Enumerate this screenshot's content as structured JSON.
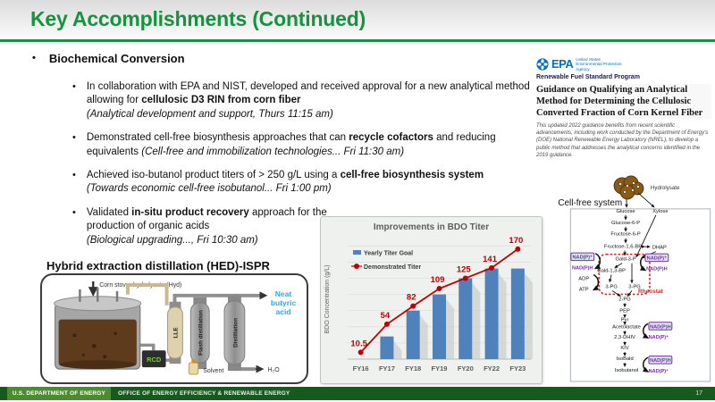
{
  "slide": {
    "title": "Key Accomplishments (Continued)",
    "page_number": "17"
  },
  "footer": {
    "doe": "U.S. DEPARTMENT OF ENERGY",
    "office": "OFFICE OF ENERGY EFFICIENCY & RENEWABLE ENERGY"
  },
  "colors": {
    "title_green": "#17923e",
    "footer_dark_green": "#175a1e",
    "footer_mid_green": "#4a8c2e",
    "bar_blue": "#4f81bd",
    "line_red": "#c00000",
    "epa_blue": "#0071bc",
    "product_blue": "#29abe2",
    "cofactor_purple": "#7030a0"
  },
  "bullets": {
    "section": "Biochemical Conversion",
    "items": [
      {
        "segments": [
          {
            "text": "In collaboration with EPA and NIST, developed and received approval for a new analytical method allowing for "
          },
          {
            "text": "cellulosic D3 RIN from corn fiber",
            "bold": true
          },
          {
            "text": "(Analytical development and support, Thurs 11:15 am)",
            "italic": true,
            "block": true
          }
        ]
      },
      {
        "segments": [
          {
            "text": "Demonstrated cell-free biosynthesis approaches that can "
          },
          {
            "text": "recycle cofactors",
            "bold": true
          },
          {
            "text": " and reducing equivalents "
          },
          {
            "text": "(Cell-free and immobilization technologies... Fri 11:30 am)",
            "italic": true
          }
        ]
      },
      {
        "segments": [
          {
            "text": "Achieved iso-butanol product titers of > 250 g/L using a "
          },
          {
            "text": "cell-free biosynthesis system",
            "bold": true
          },
          {
            "text": "(Towards economic cell-free isobutanol... Fri 1:00 pm)",
            "italic": true,
            "block": true
          }
        ]
      },
      {
        "segments": [
          {
            "text": "Validated "
          },
          {
            "text": "in-situ product recovery",
            "bold": true
          },
          {
            "text": " approach for the production of organic acids",
            "bold": false
          },
          {
            "text": "(Biological upgrading..., Fri 10:30 am)",
            "italic": true,
            "block": true
          }
        ]
      }
    ]
  },
  "hed": {
    "title": "Hybrid extraction distillation (HED)-ISPR",
    "feed": "Corn stover hydrolysate (Hyd)",
    "rcd": "RCD",
    "lle": "LLE",
    "flash": "Flash distillation",
    "distillation": "Distillation",
    "product": "Neat butyric acid",
    "water": "H₂O",
    "solvent": "Solvent"
  },
  "chart_data": {
    "type": "bar",
    "title": "Improvements in BDO Titer",
    "categories": [
      "FY16",
      "FY17",
      "FY18",
      "FY19",
      "FY20",
      "FY22",
      "FY23"
    ],
    "series": [
      {
        "name": "Yearly Titer Goal",
        "type": "bar",
        "color": "#4f81bd",
        "values": [
          null,
          35,
          75,
          100,
          125,
          140,
          140
        ]
      },
      {
        "name": "Demonstrated Titer",
        "type": "line",
        "color": "#c00000",
        "values": [
          10.5,
          54,
          82,
          109,
          125,
          141,
          170
        ],
        "labels": [
          "10.5",
          "54",
          "82",
          "109",
          "125",
          "141",
          "170"
        ]
      }
    ],
    "xlabel": "",
    "ylabel": "BDO Concentration (g/L)",
    "ylim": [
      0,
      185
    ],
    "grid": true,
    "legend_position": "top-left"
  },
  "epa_doc": {
    "logo_word": "EPA",
    "logo_sub1": "United States",
    "logo_sub2": "Environmental Protection",
    "logo_sub3": "Agency",
    "program": "Renewable Fuel Standard Program",
    "title": "Guidance on Qualifying an Analytical Method for Determining the Cellulosic Converted Fraction of Corn Kernel Fiber",
    "body": "This updated 2022 guidance benefits from recent scientific advancements, including work conducted by the Department of Energy's (DOE) National Renewable Energy Laboratory (NREL), to develop a public method that addresses the analytical concerns identified in the 2019 guidance."
  },
  "cellfree": {
    "hydrolysate": "Hydrolysate",
    "system": "Cell-free system",
    "glucose": "Glucose",
    "xylose": "Xylose",
    "g6p": "Glucose-6-P",
    "f6p": "Fructose-6-P",
    "f16bp": "Fructose-1,6-BP",
    "dhap": "DHAP",
    "gald3p": "Gald-3-P",
    "gald13bp": "Gald-1,3-BP",
    "pg3": "3-PG",
    "pg2": "2-PG",
    "pep": "PEP",
    "pyr": "Pyr",
    "acetolactate": "Acetolactate",
    "dhiv": "2,3-DHIV",
    "kiv": "KIV",
    "isobald": "IsoBald",
    "isobutanol": "Isobutanol",
    "nadp": "NAD(P)⁺",
    "nadph": "NAD(P)H",
    "adp": "ADP",
    "atp": "ATP",
    "rheostat": "Rheostat"
  }
}
